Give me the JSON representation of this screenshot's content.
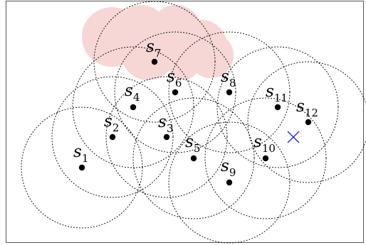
{
  "diagram": {
    "colors": {
      "frame": "#555555",
      "range_circle": "#000000",
      "sensor": "#000000",
      "target": "#1f2fd0",
      "cloud": "#f7d6d6"
    },
    "sensors": [
      {
        "label": "s",
        "index": "1"
      },
      {
        "label": "s",
        "index": "2"
      },
      {
        "label": "s",
        "index": "3"
      },
      {
        "label": "s",
        "index": "4"
      },
      {
        "label": "s",
        "index": "5"
      },
      {
        "label": "s",
        "index": "6"
      },
      {
        "label": "s",
        "index": "7"
      },
      {
        "label": "s",
        "index": "8"
      },
      {
        "label": "s",
        "index": "9"
      },
      {
        "label": "s",
        "index": "10"
      },
      {
        "label": "s",
        "index": "11"
      },
      {
        "label": "s",
        "index": "12"
      }
    ],
    "target_marker": "cross-icon"
  }
}
